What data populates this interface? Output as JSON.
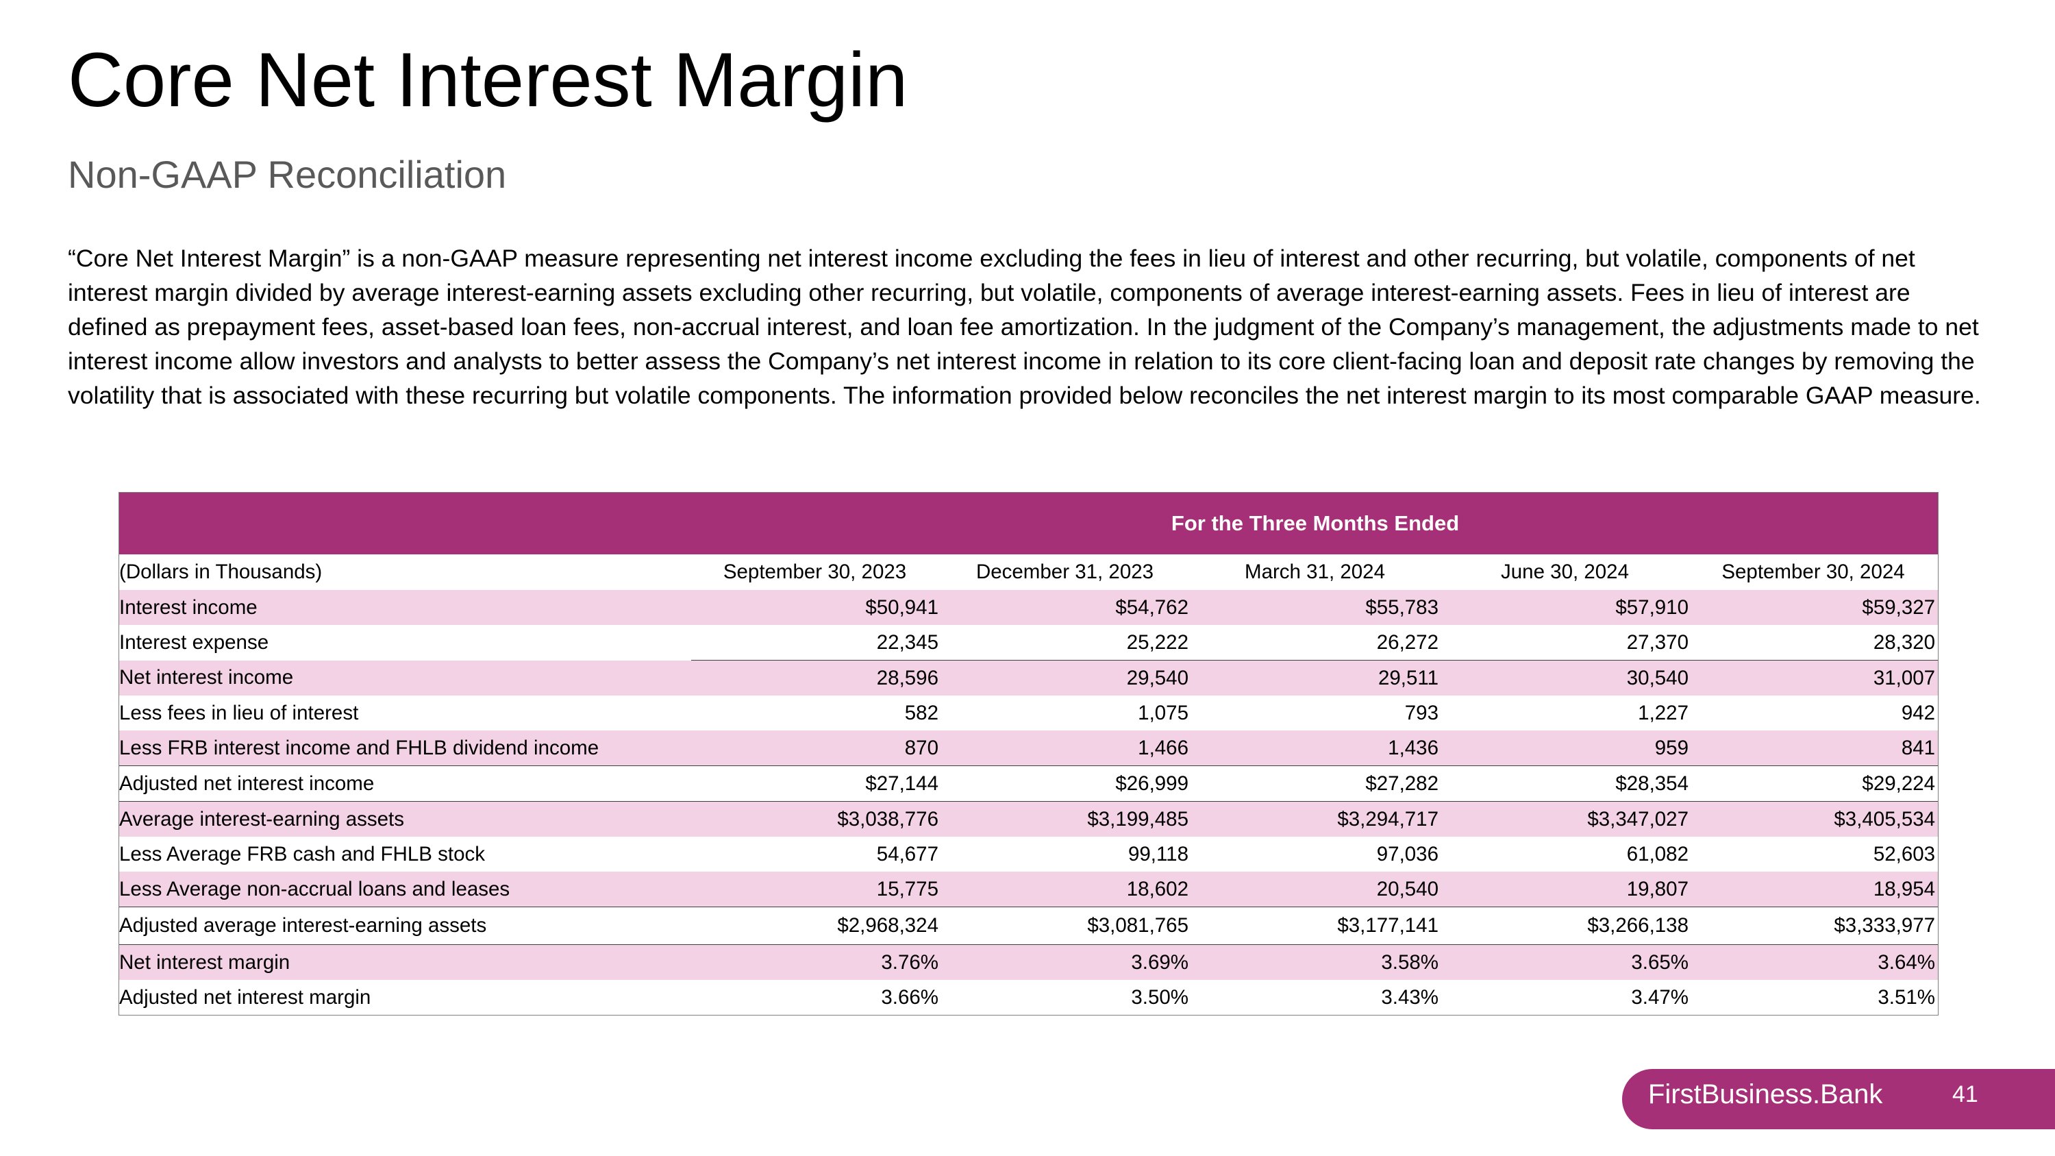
{
  "header": {
    "title": "Core Net Interest Margin",
    "subtitle": "Non-GAAP Reconciliation"
  },
  "description": "“Core Net Interest Margin” is a non-GAAP measure representing net interest income excluding the fees in lieu of interest and other recurring, but volatile, components of net interest margin divided by average interest-earning assets excluding other recurring, but volatile, components of average interest-earning assets. Fees in lieu of interest are defined as prepayment fees, asset-based loan fees, non-accrual interest, and loan fee amortization. In the judgment of the Company’s management, the adjustments made to net interest income allow investors and analysts to better assess the Company’s net interest income in relation to its core client-facing loan and deposit rate changes by removing the volatility that is associated with these recurring but volatile components. The information provided below reconciles the net interest margin to its most comparable GAAP measure.",
  "table": {
    "group_header": "For the Three Months Ended",
    "columns": [
      "(Dollars in Thousands)",
      "September 30, 2023",
      "December 31, 2023",
      "March 31, 2024",
      "June 30, 2024",
      "September 30, 2024"
    ],
    "rows": [
      {
        "label": "Interest income",
        "values": [
          "$50,941",
          "$54,762",
          "$55,783",
          "$57,910",
          "$59,327"
        ]
      },
      {
        "label": "Interest expense",
        "values": [
          "22,345",
          "25,222",
          "26,272",
          "27,370",
          "28,320"
        ]
      },
      {
        "label": "Net interest income",
        "values": [
          "28,596",
          "29,540",
          "29,511",
          "30,540",
          "31,007"
        ]
      },
      {
        "label": "Less fees in lieu of interest",
        "values": [
          "582",
          "1,075",
          "793",
          "1,227",
          "942"
        ]
      },
      {
        "label": "Less FRB interest income and FHLB dividend income",
        "values": [
          "870",
          "1,466",
          "1,436",
          "959",
          "841"
        ]
      },
      {
        "label": "Adjusted net interest income",
        "values": [
          "$27,144",
          "$26,999",
          "$27,282",
          "$28,354",
          "$29,224"
        ]
      },
      {
        "label": "Average interest-earning assets",
        "values": [
          "$3,038,776",
          "$3,199,485",
          "$3,294,717",
          "$3,347,027",
          "$3,405,534"
        ]
      },
      {
        "label": "Less Average FRB cash and FHLB stock",
        "values": [
          "54,677",
          "99,118",
          "97,036",
          "61,082",
          "52,603"
        ]
      },
      {
        "label": "Less Average non-accrual loans and leases",
        "values": [
          "15,775",
          "18,602",
          "20,540",
          "19,807",
          "18,954"
        ]
      },
      {
        "label": "Adjusted average interest-earning assets",
        "values": [
          "$2,968,324",
          "$3,081,765",
          "$3,177,141",
          "$3,266,138",
          "$3,333,977"
        ]
      },
      {
        "label": "Net interest margin",
        "values": [
          "3.76%",
          "3.69%",
          "3.58%",
          "3.65%",
          "3.64%"
        ]
      },
      {
        "label": "Adjusted net interest margin",
        "values": [
          "3.66%",
          "3.50%",
          "3.43%",
          "3.47%",
          "3.51%"
        ]
      }
    ]
  },
  "footer": {
    "brand": "FirstBusiness.Bank",
    "page_number": "41"
  },
  "colors": {
    "accent": "#a53077",
    "row_shade": "#f3d2e5",
    "subtitle": "#595959"
  }
}
